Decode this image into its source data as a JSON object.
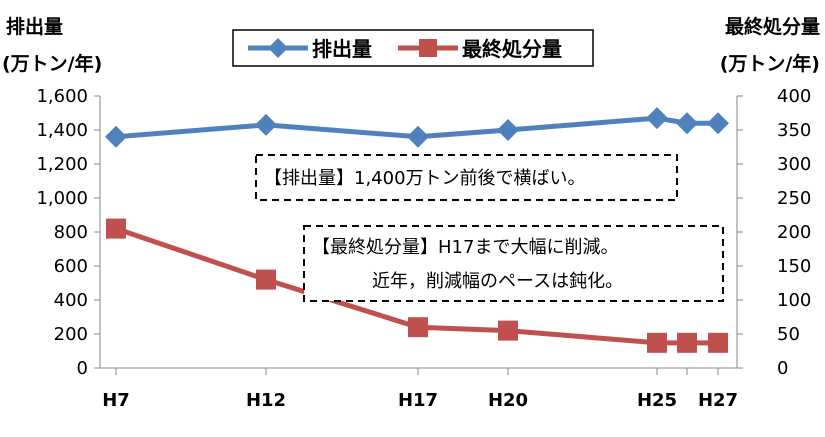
{
  "chart_data": {
    "type": "line",
    "categories": [
      "H7",
      "H12",
      "H17",
      "H20",
      "H25",
      "H26",
      "H27"
    ],
    "x_tick_labels": [
      "H7",
      "H12",
      "H17",
      "H20",
      "H25",
      "H27"
    ],
    "x_values": [
      7,
      12,
      17,
      20,
      25,
      26,
      27
    ],
    "series": [
      {
        "name": "排出量",
        "axis": "left",
        "color": "#4f81bd",
        "marker": "diamond",
        "values": [
          1360,
          1430,
          1360,
          1400,
          1470,
          1440,
          1440
        ]
      },
      {
        "name": "最終処分量",
        "axis": "right",
        "color": "#c0504d",
        "marker": "square",
        "values": [
          205,
          130,
          60,
          55,
          37,
          37,
          37
        ]
      }
    ],
    "ylabel_left": [
      "排出量",
      "(万トン/年)"
    ],
    "ylabel_right": [
      "最終処分量",
      "(万トン/年)"
    ],
    "ylim_left": [
      0,
      1600
    ],
    "ylim_right": [
      0,
      400
    ],
    "yticks_left": [
      "0",
      "200",
      "400",
      "600",
      "800",
      "1,000",
      "1,200",
      "1,400",
      "1,600"
    ],
    "yticks_right": [
      "0",
      "50",
      "100",
      "150",
      "200",
      "250",
      "300",
      "350",
      "400"
    ],
    "legend_position": "top-center",
    "annotations": [
      {
        "id": "emission-note",
        "lines": [
          "【排出量】1,400万トン前後で横ばい。"
        ]
      },
      {
        "id": "disposal-note",
        "lines": [
          "【最終処分量】H17まで大幅に削減。",
          "近年，削減幅のペースは鈍化。"
        ]
      }
    ],
    "grid": false
  }
}
